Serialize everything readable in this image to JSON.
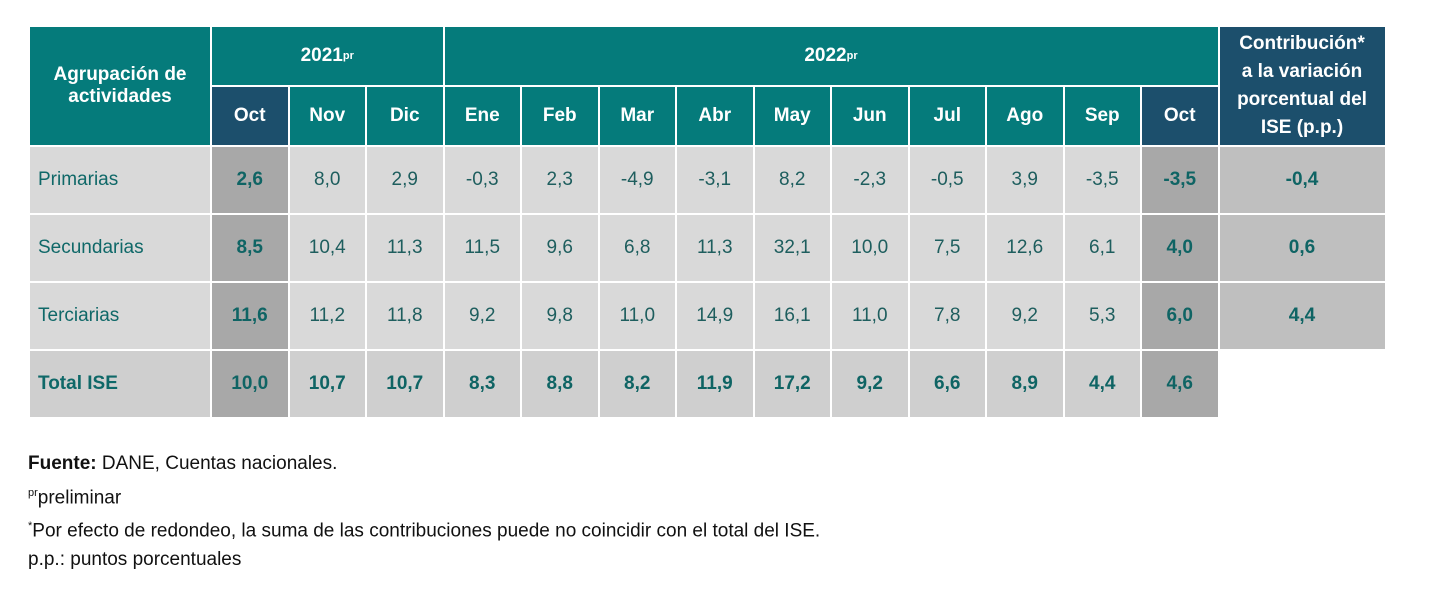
{
  "table": {
    "header": {
      "group": "Agrupación de actividades",
      "years": [
        {
          "year": "2021",
          "note": "pr",
          "months": [
            "Oct",
            "Nov",
            "Dic"
          ]
        },
        {
          "year": "2022",
          "note": "pr",
          "months": [
            "Ene",
            "Feb",
            "Mar",
            "Abr",
            "May",
            "Jun",
            "Jul",
            "Ago",
            "Sep",
            "Oct"
          ]
        }
      ],
      "contribution": [
        "Contribución*",
        "a la variación",
        "porcentual del",
        "ISE (p.p.)"
      ]
    },
    "rows": [
      {
        "label": "Primarias",
        "values": [
          "2,6",
          "8,0",
          "2,9",
          "-0,3",
          "2,3",
          "-4,9",
          "-3,1",
          "8,2",
          "-2,3",
          "-0,5",
          "3,9",
          "-3,5",
          "-3,5"
        ],
        "contribution": "-0,4"
      },
      {
        "label": "Secundarias",
        "values": [
          "8,5",
          "10,4",
          "11,3",
          "11,5",
          "9,6",
          "6,8",
          "11,3",
          "32,1",
          "10,0",
          "7,5",
          "12,6",
          "6,1",
          "4,0"
        ],
        "contribution": "0,6"
      },
      {
        "label": "Terciarias",
        "values": [
          "11,6",
          "11,2",
          "11,8",
          "9,2",
          "9,8",
          "11,0",
          "14,9",
          "16,1",
          "11,0",
          "7,8",
          "9,2",
          "5,3",
          "6,0"
        ],
        "contribution": "4,4"
      },
      {
        "label": "Total ISE",
        "values": [
          "10,0",
          "10,7",
          "10,7",
          "8,3",
          "8,8",
          "8,2",
          "11,9",
          "17,2",
          "9,2",
          "6,6",
          "8,9",
          "4,4",
          "4,6"
        ]
      }
    ]
  },
  "footnotes": [
    {
      "label": "Fuente:",
      "text": "DANE, Cuentas nacionales."
    },
    {
      "mark": "pr",
      "text": "preliminar"
    },
    {
      "mark": "*",
      "text": "Por efecto de redondeo, la suma de las contribuciones puede no coincidir con el total del ISE."
    },
    {
      "text": "p.p.: puntos porcentuales"
    }
  ]
}
